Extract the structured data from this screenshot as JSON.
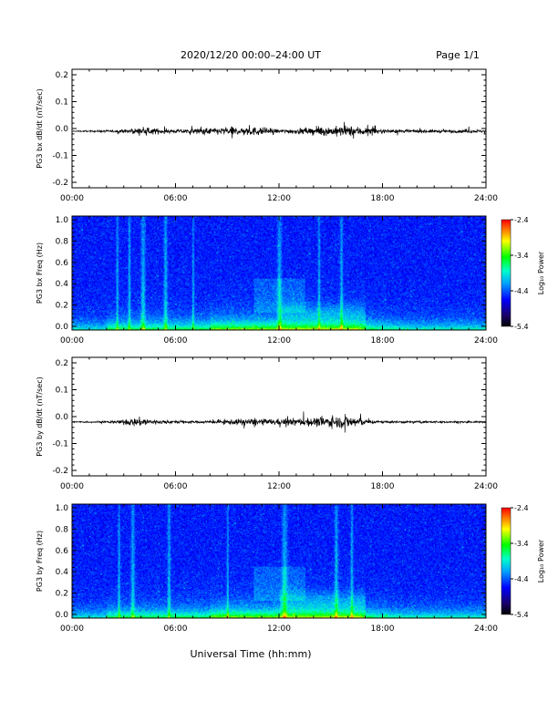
{
  "header": {
    "title": "2020/12/20  00:00–24:00 UT",
    "page": "Page 1/1"
  },
  "footer": {
    "xlabel": "Universal Time (hh:mm)"
  },
  "colors": {
    "trace": "#000000",
    "colormap": [
      "#000000",
      "#1a0066",
      "#0000ff",
      "#00a0ff",
      "#00ffcc",
      "#00ff00",
      "#ffff00",
      "#ff8000",
      "#ff0000"
    ]
  },
  "chart_data": [
    {
      "type": "line",
      "ylabel": "PG3 bx dB/dt (nT/sec)",
      "ylim": [
        -0.2,
        0.2
      ],
      "yticks": [
        "0.2",
        "0.1",
        "0.0",
        "-0.1",
        "-0.2"
      ],
      "xlim": [
        0,
        24
      ],
      "xticks": [
        "00:00",
        "06:00",
        "12:00",
        "18:00",
        "24:00"
      ],
      "series": [
        {
          "baseline": -0.01,
          "x_hours": [
            0,
            3,
            4,
            6,
            8,
            9,
            10,
            11,
            12,
            13,
            14,
            15,
            16,
            16.5,
            17,
            18,
            20,
            22,
            23,
            24
          ],
          "envelope": [
            0.002,
            0.01,
            0.022,
            0.012,
            0.022,
            0.025,
            0.03,
            0.025,
            0.012,
            0.018,
            0.025,
            0.03,
            0.035,
            0.03,
            0.03,
            0.012,
            0.01,
            0.01,
            0.012,
            0.008
          ]
        }
      ]
    },
    {
      "type": "heatmap",
      "ylabel": "PG3 bx Freq (Hz)",
      "ylim": [
        0.0,
        1.0
      ],
      "yticks": [
        "1.0",
        "0.8",
        "0.6",
        "0.4",
        "0.2",
        "0.0"
      ],
      "xlim": [
        0,
        24
      ],
      "xticks": [
        "00:00",
        "06:00",
        "12:00",
        "18:00",
        "24:00"
      ],
      "colorbar": {
        "label": "Log₁₀ Power",
        "range": [
          -5.4,
          -2.4
        ],
        "ticks": [
          "-2.4",
          "-3.4",
          "-4.4",
          "-5.4"
        ]
      }
    },
    {
      "type": "line",
      "ylabel": "PG3 by dB/dt (nT/sec)",
      "ylim": [
        -0.2,
        0.2
      ],
      "yticks": [
        "0.2",
        "0.1",
        "0.0",
        "-0.1",
        "-0.2"
      ],
      "xlim": [
        0,
        24
      ],
      "xticks": [
        "00:00",
        "06:00",
        "12:00",
        "18:00",
        "24:00"
      ],
      "series": [
        {
          "baseline": -0.02,
          "x_hours": [
            0,
            2,
            3,
            4,
            5,
            7,
            8,
            9,
            10,
            11,
            12,
            13,
            14,
            15,
            16,
            16.5,
            17,
            18,
            21,
            24
          ],
          "envelope": [
            0.004,
            0.006,
            0.015,
            0.03,
            0.012,
            0.008,
            0.01,
            0.015,
            0.022,
            0.02,
            0.02,
            0.025,
            0.028,
            0.035,
            0.04,
            0.04,
            0.015,
            0.008,
            0.006,
            0.005
          ]
        }
      ]
    },
    {
      "type": "heatmap",
      "ylabel": "PG3 by Freq (Hz)",
      "ylim": [
        0.0,
        1.0
      ],
      "yticks": [
        "1.0",
        "0.8",
        "0.6",
        "0.4",
        "0.2",
        "0.0"
      ],
      "xlim": [
        0,
        24
      ],
      "xticks": [
        "00:00",
        "06:00",
        "12:00",
        "18:00",
        "24:00"
      ],
      "colorbar": {
        "label": "Log₁₀ Power",
        "range": [
          -5.4,
          -2.4
        ],
        "ticks": [
          "-2.4",
          "-3.4",
          "-4.4",
          "-5.4"
        ]
      }
    }
  ]
}
